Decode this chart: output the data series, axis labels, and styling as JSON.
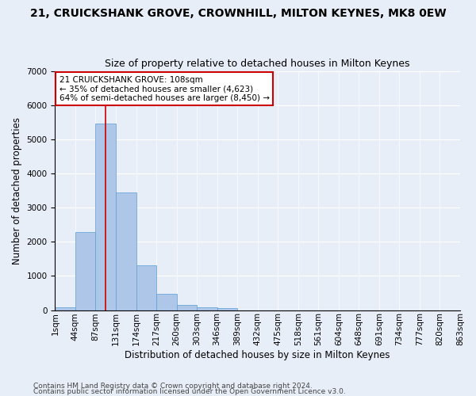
{
  "title": "21, CRUICKSHANK GROVE, CROWNHILL, MILTON KEYNES, MK8 0EW",
  "subtitle": "Size of property relative to detached houses in Milton Keynes",
  "xlabel": "Distribution of detached houses by size in Milton Keynes",
  "ylabel": "Number of detached properties",
  "footer_line1": "Contains HM Land Registry data © Crown copyright and database right 2024.",
  "footer_line2": "Contains public sector information licensed under the Open Government Licence v3.0.",
  "bin_labels": [
    "1sqm",
    "44sqm",
    "87sqm",
    "131sqm",
    "174sqm",
    "217sqm",
    "260sqm",
    "303sqm",
    "346sqm",
    "389sqm",
    "432sqm",
    "475sqm",
    "518sqm",
    "561sqm",
    "604sqm",
    "648sqm",
    "691sqm",
    "734sqm",
    "777sqm",
    "820sqm",
    "863sqm"
  ],
  "bar_values": [
    75,
    2280,
    5460,
    3450,
    1320,
    470,
    155,
    90,
    55,
    0,
    0,
    0,
    0,
    0,
    0,
    0,
    0,
    0,
    0,
    0
  ],
  "bar_color": "#aec6e8",
  "bar_edge_color": "#5a9fd4",
  "annotation_text": "21 CRUICKSHANK GROVE: 108sqm\n← 35% of detached houses are smaller (4,623)\n64% of semi-detached houses are larger (8,450) →",
  "annotation_box_color": "#ffffff",
  "annotation_box_edgecolor": "#cc0000",
  "vline_color": "#cc0000",
  "ylim": [
    0,
    7000
  ],
  "yticks": [
    0,
    1000,
    2000,
    3000,
    4000,
    5000,
    6000,
    7000
  ],
  "background_color": "#e8eef8",
  "grid_color": "#ffffff",
  "title_fontsize": 10,
  "subtitle_fontsize": 9,
  "axis_label_fontsize": 8.5,
  "tick_fontsize": 7.5,
  "footer_fontsize": 6.5
}
